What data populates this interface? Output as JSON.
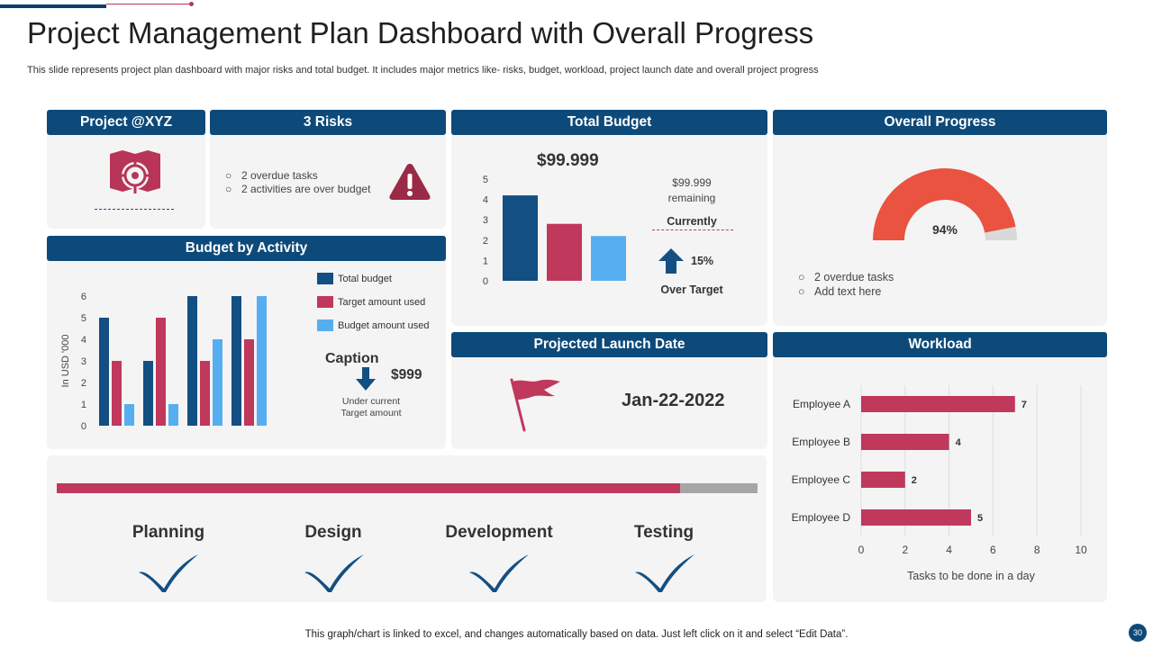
{
  "title": "Project Management Plan Dashboard with Overall Progress",
  "subtitle": "This slide represents project plan dashboard with major risks and total budget. It includes major metrics like- risks, budget, workload, project launch date and overall project progress",
  "colors": {
    "navy": "#0d4a7a",
    "crimson": "#c0385c",
    "blue": "#134f82",
    "light_blue": "#56aef0",
    "orange_red": "#e9533f",
    "gray": "#a6a6a6"
  },
  "project": {
    "header": "Project @XYZ",
    "icon": "project-target-map-icon"
  },
  "risks": {
    "header": "3 Risks",
    "items": [
      "2 overdue tasks",
      "2 activities are over budget"
    ],
    "icon": "warning-triangle-icon"
  },
  "budget": {
    "header": "Total Budget",
    "amount": "$99.999",
    "remaining_amount": "$99.999",
    "remaining_label": "remaining",
    "currently_label": "Currently",
    "percent": "15%",
    "over_target_label": "Over Target"
  },
  "progress": {
    "header": "Overall Progress",
    "percent_label": "94%",
    "value": 0.94,
    "items": [
      "2 overdue  tasks",
      "Add text here"
    ]
  },
  "budget_activity": {
    "header": "Budget by Activity",
    "legend": [
      "Total budget",
      "Target amount used",
      "Budget amount used"
    ],
    "caption_title": "Caption",
    "caption_amount": "$999",
    "caption_line1": "Under current",
    "caption_line2": "Target amount"
  },
  "launch": {
    "header": "Projected Launch Date",
    "date": "Jan-22-2022",
    "icon": "flag-icon"
  },
  "workload": {
    "header": "Workload"
  },
  "timeline": {
    "phases": [
      "Planning",
      "Design",
      "Development",
      "Testing"
    ],
    "progress": 0.89
  },
  "footer": "This graph/chart is linked to excel,  and changes automatically based on data. Just left click on it and select “Edit Data”.",
  "page_number": "30",
  "chart_data": [
    {
      "type": "bar",
      "name": "total-budget-chart",
      "categories": [
        "",
        "",
        ""
      ],
      "values": [
        4.2,
        2.8,
        2.2
      ],
      "ylim": [
        0,
        5
      ],
      "yticks": [
        0,
        1,
        2,
        3,
        4,
        5
      ]
    },
    {
      "type": "bar",
      "name": "budget-by-activity-chart",
      "ylabel": "In USD '000",
      "ylim": [
        0,
        6
      ],
      "yticks": [
        0,
        1,
        2,
        3,
        4,
        5,
        6
      ],
      "categories": [
        "",
        "",
        "",
        ""
      ],
      "series": [
        {
          "name": "Total budget",
          "values": [
            5,
            3,
            6,
            6
          ]
        },
        {
          "name": "Target amount used",
          "values": [
            3,
            5,
            3,
            4
          ]
        },
        {
          "name": "Budget amount used",
          "values": [
            1,
            1,
            4,
            6
          ]
        }
      ]
    },
    {
      "type": "bar",
      "orientation": "horizontal",
      "name": "workload-chart",
      "categories": [
        "Employee A",
        "Employee B",
        "Employee C",
        "Employee D"
      ],
      "values": [
        7,
        4,
        2,
        5
      ],
      "xlim": [
        0,
        10
      ],
      "xticks": [
        0,
        2,
        4,
        6,
        8,
        10
      ],
      "xlabel": "Tasks to be done in a day"
    }
  ]
}
